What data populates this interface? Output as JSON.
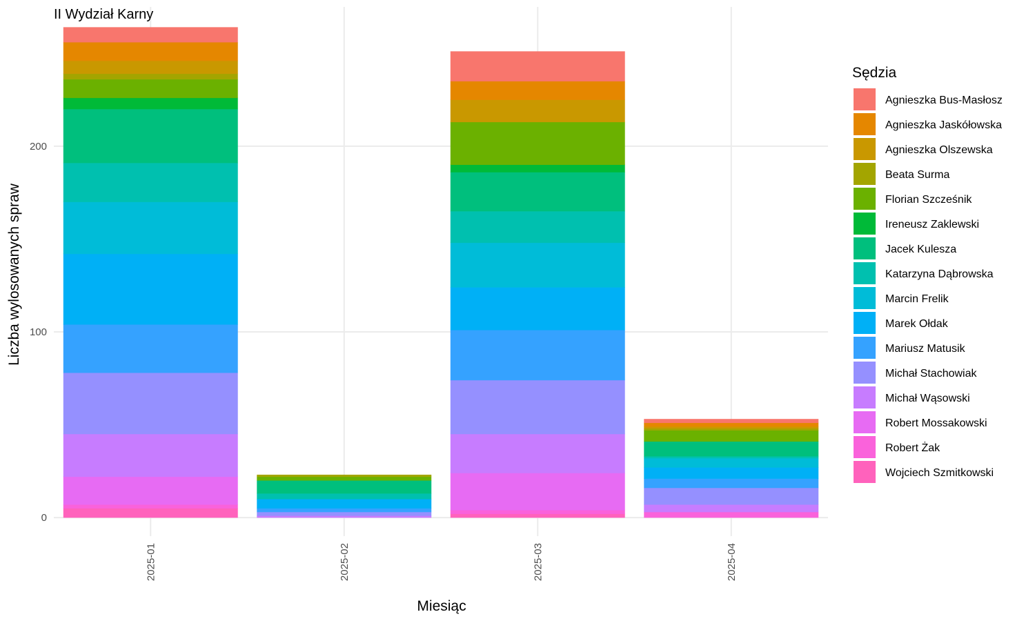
{
  "chart_data": {
    "type": "bar",
    "stacked": true,
    "title": "II Wydział Karny",
    "xlabel": "Miesiąc",
    "ylabel": "Liczba wylosowanych spraw",
    "ylim": [
      -10,
      275
    ],
    "yticks": [
      0,
      100,
      200
    ],
    "grid": true,
    "legend_title": "Sędzia",
    "legend_position": "right",
    "categories": [
      "2025-01",
      "2025-02",
      "2025-03",
      "2025-04"
    ],
    "series": [
      {
        "name": "Agnieszka Bus-Masłosz",
        "color": "#F8766D",
        "values": [
          8,
          0,
          16,
          2
        ]
      },
      {
        "name": "Agnieszka Jaskółowska",
        "color": "#E58700",
        "values": [
          10,
          0,
          10,
          2
        ]
      },
      {
        "name": "Agnieszka Olszewska",
        "color": "#C99800",
        "values": [
          7,
          0,
          12,
          1
        ]
      },
      {
        "name": "Beata Surma",
        "color": "#A3A500",
        "values": [
          3,
          1,
          0,
          1
        ]
      },
      {
        "name": "Florian Szcześnik",
        "color": "#6BB100",
        "values": [
          10,
          2,
          23,
          6
        ]
      },
      {
        "name": "Ireneusz Zaklewski",
        "color": "#00BA38",
        "values": [
          6,
          0,
          4,
          0
        ]
      },
      {
        "name": "Jacek Kulesza",
        "color": "#00BF7D",
        "values": [
          29,
          7,
          21,
          8
        ]
      },
      {
        "name": "Katarzyna Dąbrowska",
        "color": "#00C0AF",
        "values": [
          21,
          3,
          17,
          1
        ]
      },
      {
        "name": "Marcin Frelik",
        "color": "#00BCD8",
        "values": [
          28,
          0,
          24,
          5
        ]
      },
      {
        "name": "Marek Ołdak",
        "color": "#00B0F6",
        "values": [
          38,
          5,
          23,
          6
        ]
      },
      {
        "name": "Mariusz Matusik",
        "color": "#35A2FF",
        "values": [
          26,
          2,
          27,
          5
        ]
      },
      {
        "name": "Michał Stachowiak",
        "color": "#9590FF",
        "values": [
          33,
          2,
          29,
          9
        ]
      },
      {
        "name": "Michał Wąsowski",
        "color": "#C77CFF",
        "values": [
          23,
          1,
          21,
          4
        ]
      },
      {
        "name": "Robert Mossakowski",
        "color": "#E76BF3",
        "values": [
          15,
          0,
          20,
          0
        ]
      },
      {
        "name": "Robert Żak",
        "color": "#FA62DB",
        "values": [
          2,
          0,
          2,
          3
        ]
      },
      {
        "name": "Wojciech Szmitkowski",
        "color": "#FF62BC",
        "values": [
          5,
          0,
          2,
          0
        ]
      }
    ]
  }
}
